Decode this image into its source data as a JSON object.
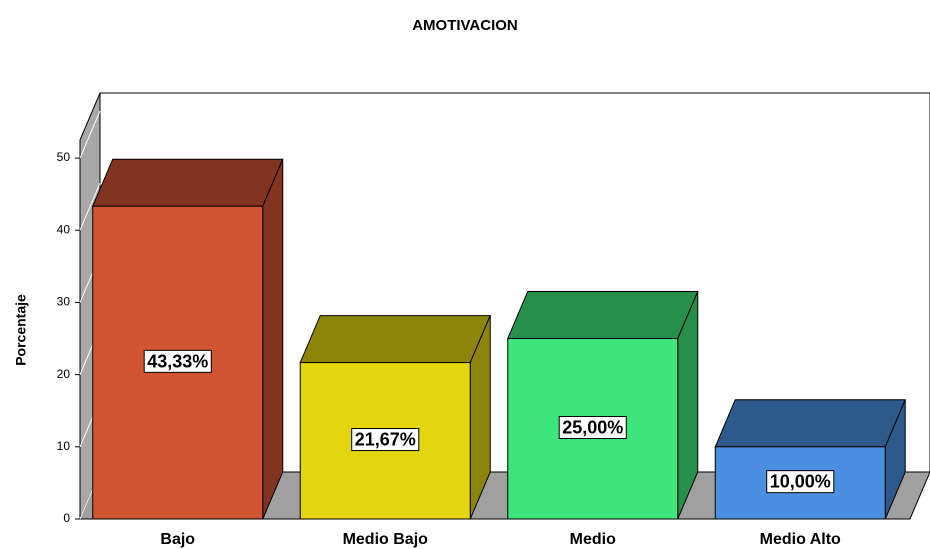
{
  "chart_data": {
    "type": "bar3d",
    "title": "AMOTIVACION",
    "y_label": "Porcentaje",
    "categories": [
      "Bajo",
      "Medio Bajo",
      "Medio",
      "Medio Alto"
    ],
    "values": [
      43.33,
      21.67,
      25.0,
      10.0
    ],
    "value_labels": [
      "43,33%",
      "21,67%",
      "25,00%",
      "10,00%"
    ],
    "colors": [
      "#d15433",
      "#e3d60e",
      "#3de67a",
      "#4a8fe0"
    ],
    "ylim": [
      0,
      52.5
    ],
    "yticks": [
      0,
      10,
      20,
      30,
      40,
      50
    ]
  }
}
